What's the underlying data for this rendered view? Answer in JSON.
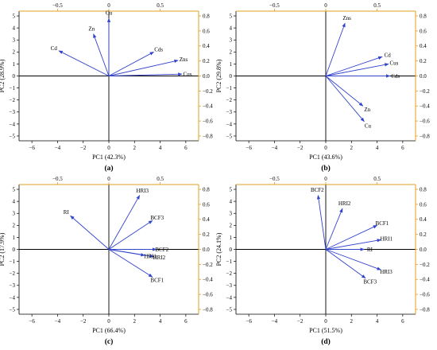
{
  "colors": {
    "vector": "#3344cc",
    "top_axis": "#e0a020",
    "right_axis": "#e0a020",
    "frame": "#000000",
    "zero_line": "#000000"
  },
  "chart_data": [
    {
      "type": "scatter",
      "panel_label": "(a)",
      "xlabel": "PC1 (42.3%)",
      "ylabel": "PC2 (28.9%)",
      "xlim": [
        -7,
        7
      ],
      "ylim": [
        -5.4,
        5.4
      ],
      "top_xlim": [
        -0.875,
        0.875
      ],
      "right_ylim": [
        -0.864,
        0.864
      ],
      "xticks": [
        -6,
        -4,
        -2,
        0,
        2,
        4,
        6
      ],
      "yticks": [
        -5,
        -4,
        -3,
        -2,
        -1,
        0,
        1,
        2,
        3,
        4,
        5
      ],
      "top_ticks": [
        -0.5,
        0,
        0.5
      ],
      "right_ticks": [
        -0.8,
        -0.6,
        -0.4,
        -0.2,
        0.0,
        0.2,
        0.4,
        0.6,
        0.8
      ],
      "vectors": [
        {
          "label": "Cu",
          "x": 0.0,
          "y": 4.8
        },
        {
          "label": "Zn",
          "x": -1.2,
          "y": 3.5
        },
        {
          "label": "Cd",
          "x": -3.9,
          "y": 2.1
        },
        {
          "label": "Cds",
          "x": 3.5,
          "y": 2.0
        },
        {
          "label": "Zns",
          "x": 5.4,
          "y": 1.3
        },
        {
          "label": "Cus",
          "x": 5.7,
          "y": 0.15
        }
      ]
    },
    {
      "type": "scatter",
      "panel_label": "(b)",
      "xlabel": "PC1 (43.6%)",
      "ylabel": "PC2 (29.8%)",
      "xlim": [
        -7,
        7
      ],
      "ylim": [
        -5.4,
        5.4
      ],
      "top_xlim": [
        -0.875,
        0.875
      ],
      "right_ylim": [
        -0.864,
        0.864
      ],
      "xticks": [
        -6,
        -4,
        -2,
        0,
        2,
        4,
        6
      ],
      "yticks": [
        -5,
        -4,
        -3,
        -2,
        -1,
        0,
        1,
        2,
        3,
        4,
        5
      ],
      "top_ticks": [
        -0.5,
        0,
        0.5
      ],
      "right_ticks": [
        -0.8,
        -0.6,
        -0.4,
        -0.2,
        0.0,
        0.2,
        0.4,
        0.6,
        0.8
      ],
      "vectors": [
        {
          "label": "Zns",
          "x": 1.5,
          "y": 4.4
        },
        {
          "label": "Cd",
          "x": 4.4,
          "y": 1.6
        },
        {
          "label": "Cus",
          "x": 4.9,
          "y": 1.0
        },
        {
          "label": "Cds",
          "x": 5.0,
          "y": 0.0
        },
        {
          "label": "Zn",
          "x": 2.9,
          "y": -2.5
        },
        {
          "label": "Cu",
          "x": 3.0,
          "y": -3.8
        }
      ]
    },
    {
      "type": "scatter",
      "panel_label": "(c)",
      "xlabel": "PC1 (66.4%)",
      "ylabel": "PC2 (17.9%)",
      "xlim": [
        -7,
        7
      ],
      "ylim": [
        -5.4,
        5.4
      ],
      "top_xlim": [
        -0.875,
        0.875
      ],
      "right_ylim": [
        -0.864,
        0.864
      ],
      "xticks": [
        -6,
        -4,
        -2,
        0,
        2,
        4,
        6
      ],
      "yticks": [
        -5,
        -4,
        -3,
        -2,
        -1,
        0,
        1,
        2,
        3,
        4,
        5
      ],
      "top_ticks": [
        -0.5,
        0,
        0.5
      ],
      "right_ticks": [
        -0.8,
        -0.6,
        -0.4,
        -0.2,
        0.0,
        0.2,
        0.4,
        0.6,
        0.8
      ],
      "vectors": [
        {
          "label": "HRI3",
          "x": 2.4,
          "y": 4.5
        },
        {
          "label": "RI",
          "x": -3.0,
          "y": 2.8
        },
        {
          "label": "BCF3",
          "x": 3.4,
          "y": 2.4
        },
        {
          "label": "BCF2",
          "x": 3.7,
          "y": 0.0
        },
        {
          "label": "HRI2",
          "x": 3.5,
          "y": -0.6
        },
        {
          "label": "HRI1",
          "x": 2.8,
          "y": -0.5
        },
        {
          "label": "BCF1",
          "x": 3.4,
          "y": -2.3
        }
      ]
    },
    {
      "type": "scatter",
      "panel_label": "(d)",
      "xlabel": "PC1 (51.5%)",
      "ylabel": "PC2 (24.1%)",
      "xlim": [
        -7,
        7
      ],
      "ylim": [
        -5.4,
        5.4
      ],
      "top_xlim": [
        -0.875,
        0.875
      ],
      "right_ylim": [
        -0.864,
        0.864
      ],
      "xticks": [
        -6,
        -4,
        -2,
        0,
        2,
        4,
        6
      ],
      "yticks": [
        -5,
        -4,
        -3,
        -2,
        -1,
        0,
        1,
        2,
        3,
        4,
        5
      ],
      "top_ticks": [
        -0.5,
        0,
        0.5
      ],
      "right_ticks": [
        -0.8,
        -0.6,
        -0.4,
        -0.2,
        0.0,
        0.2,
        0.4,
        0.6,
        0.8
      ],
      "vectors": [
        {
          "label": "BCF2",
          "x": -0.6,
          "y": 4.5
        },
        {
          "label": "HRI2",
          "x": 1.3,
          "y": 3.4
        },
        {
          "label": "BCF1",
          "x": 4.0,
          "y": 2.0
        },
        {
          "label": "HRI1",
          "x": 4.3,
          "y": 0.8
        },
        {
          "label": "RI",
          "x": 3.0,
          "y": 0.0
        },
        {
          "label": "HRI3",
          "x": 4.3,
          "y": -1.7
        },
        {
          "label": "BCF3",
          "x": 3.1,
          "y": -2.4
        }
      ]
    }
  ]
}
